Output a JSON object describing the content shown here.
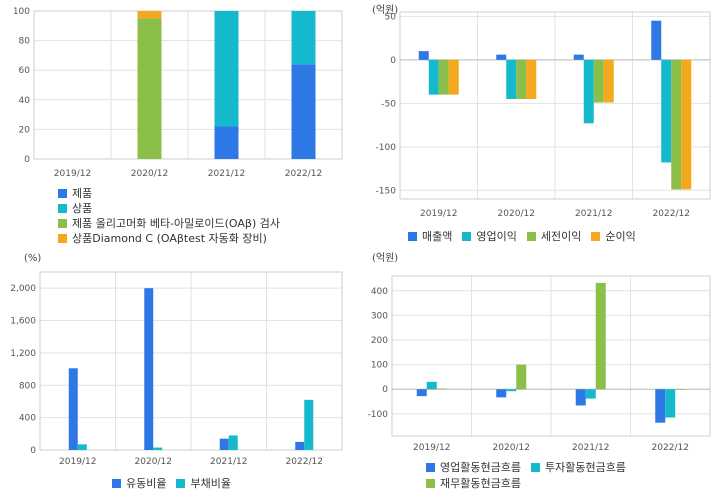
{
  "colors": {
    "blue": "#2e78e6",
    "cyan": "#14b9cc",
    "green": "#8cbf4a",
    "orange": "#f3a81d",
    "grid": "#e2e2e2",
    "axis": "#cfcfcf"
  },
  "chart_data": [
    {
      "id": "product-mix",
      "type": "bar",
      "stacked": true,
      "unit_label": "",
      "categories": [
        "2019/12",
        "2020/12",
        "2021/12",
        "2022/12"
      ],
      "ylim": [
        0,
        100
      ],
      "yticks": [
        0,
        20,
        40,
        60,
        80,
        100
      ],
      "series": [
        {
          "name": "제품",
          "color": "#2e78e6",
          "values": [
            0,
            0,
            22,
            64
          ]
        },
        {
          "name": "상품",
          "color": "#14b9cc",
          "values": [
            0,
            0,
            78,
            36
          ]
        },
        {
          "name": "제품 올리고머화 베타-아밀로이드(OAβ) 검사",
          "color": "#8cbf4a",
          "values": [
            0,
            95,
            0,
            0
          ]
        },
        {
          "name": "상품Diamond C (OAβtest 자동화 장비)",
          "color": "#f3a81d",
          "values": [
            0,
            5,
            0,
            0
          ]
        }
      ]
    },
    {
      "id": "income",
      "type": "bar",
      "unit_label": "(억원)",
      "categories": [
        "2019/12",
        "2020/12",
        "2021/12",
        "2022/12"
      ],
      "ylim": [
        -160,
        55
      ],
      "yticks": [
        50,
        0,
        -50,
        -100,
        -150
      ],
      "series": [
        {
          "name": "매출액",
          "color": "#2e78e6",
          "values": [
            10,
            6,
            6,
            45
          ]
        },
        {
          "name": "영업이익",
          "color": "#14b9cc",
          "values": [
            -40,
            -45,
            -73,
            -118
          ]
        },
        {
          "name": "세전이익",
          "color": "#8cbf4a",
          "values": [
            -40,
            -45,
            -49,
            -149
          ]
        },
        {
          "name": "순이익",
          "color": "#f3a81d",
          "values": [
            -40,
            -45,
            -49,
            -149
          ]
        }
      ]
    },
    {
      "id": "ratios",
      "type": "bar",
      "unit_label": "(%)",
      "categories": [
        "2019/12",
        "2020/12",
        "2021/12",
        "2022/12"
      ],
      "ylim": [
        0,
        2200
      ],
      "yticks": [
        0,
        400,
        800,
        1200,
        1600,
        2000
      ],
      "ytick_labels": [
        "0",
        "400",
        "800",
        "1,200",
        "1,600",
        "2,000"
      ],
      "series": [
        {
          "name": "유동비율",
          "color": "#2e78e6",
          "values": [
            1010,
            2000,
            140,
            100
          ]
        },
        {
          "name": "부채비율",
          "color": "#14b9cc",
          "values": [
            70,
            30,
            180,
            620
          ]
        }
      ]
    },
    {
      "id": "cashflow",
      "type": "bar",
      "unit_label": "(억원)",
      "categories": [
        "2019/12",
        "2020/12",
        "2021/12",
        "2022/12"
      ],
      "ylim": [
        -190,
        460
      ],
      "yticks": [
        400,
        300,
        200,
        100,
        0,
        -100
      ],
      "series": [
        {
          "name": "영업활동현금흐름",
          "color": "#2e78e6",
          "values": [
            -28,
            -33,
            -66,
            -136
          ]
        },
        {
          "name": "투자활동현금흐름",
          "color": "#14b9cc",
          "values": [
            30,
            -8,
            -38,
            -115
          ]
        },
        {
          "name": "재무활동현금흐름",
          "color": "#8cbf4a",
          "values": [
            3,
            100,
            432,
            0
          ]
        }
      ]
    }
  ]
}
